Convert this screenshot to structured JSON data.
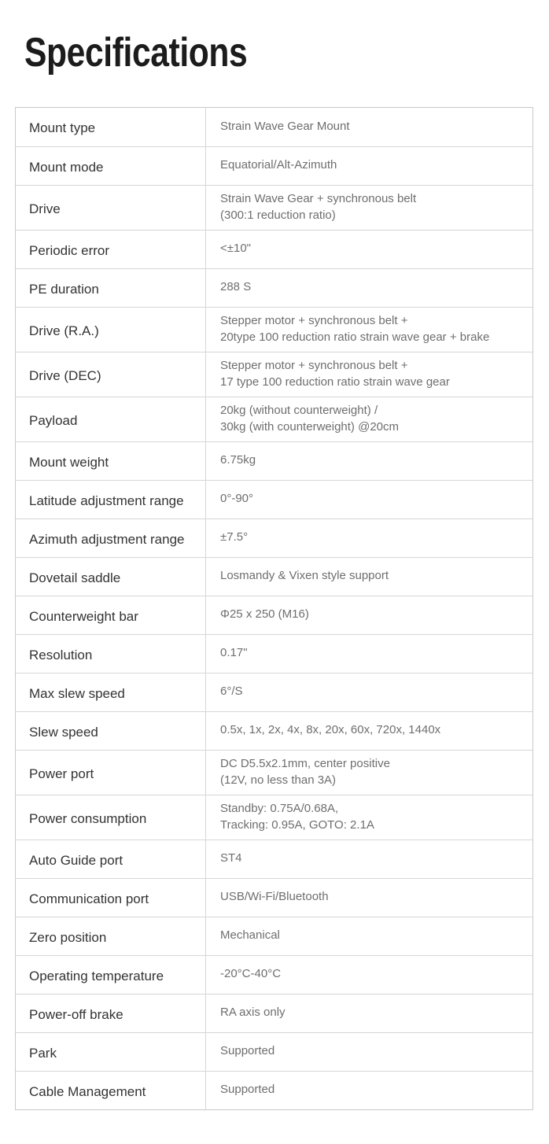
{
  "page": {
    "title": "Specifications"
  },
  "colors": {
    "background": "#ffffff",
    "title_text": "#1c1c1c",
    "label_text": "#333333",
    "value_text": "#6e6e6e",
    "border": "#d6d6d6"
  },
  "spec_table": {
    "rows": [
      {
        "label": "Mount type",
        "value": "Strain Wave Gear Mount"
      },
      {
        "label": "Mount mode",
        "value": "Equatorial/Alt-Azimuth"
      },
      {
        "label": "Drive",
        "value": "Strain Wave Gear + synchronous belt\n(300:1 reduction ratio)"
      },
      {
        "label": "Periodic error",
        "value": "<±10\""
      },
      {
        "label": "PE duration",
        "value": "288 S"
      },
      {
        "label": "Drive (R.A.)",
        "value": "Stepper motor + synchronous belt +\n20type 100 reduction ratio strain wave gear + brake"
      },
      {
        "label": "Drive (DEC)",
        "value": "Stepper motor + synchronous belt +\n17 type 100 reduction ratio strain wave gear"
      },
      {
        "label": "Payload",
        "value": "20kg (without counterweight) /\n30kg (with counterweight) @20cm"
      },
      {
        "label": "Mount weight",
        "value": "6.75kg"
      },
      {
        "label": "Latitude adjustment range",
        "value": "0°-90°"
      },
      {
        "label": "Azimuth adjustment range",
        "value": "±7.5°"
      },
      {
        "label": "Dovetail saddle",
        "value": "Losmandy & Vixen style support"
      },
      {
        "label": "Counterweight bar",
        "value": "Φ25 x 250 (M16)"
      },
      {
        "label": "Resolution",
        "value": "0.17\""
      },
      {
        "label": "Max slew speed",
        "value": "6°/S"
      },
      {
        "label": "Slew speed",
        "value": "0.5x, 1x, 2x, 4x, 8x, 20x, 60x, 720x, 1440x"
      },
      {
        "label": "Power port",
        "value": "DC D5.5x2.1mm, center positive\n(12V, no less than 3A)"
      },
      {
        "label": "Power consumption",
        "value": "Standby: 0.75A/0.68A,\nTracking: 0.95A, GOTO: 2.1A"
      },
      {
        "label": "Auto Guide port",
        "value": "ST4"
      },
      {
        "label": "Communication port",
        "value": "USB/Wi-Fi/Bluetooth"
      },
      {
        "label": "Zero position",
        "value": "Mechanical"
      },
      {
        "label": "Operating temperature",
        "value": "-20°C-40°C"
      },
      {
        "label": "Power-off brake",
        "value": "RA axis only"
      },
      {
        "label": "Park",
        "value": "Supported"
      },
      {
        "label": "Cable Management",
        "value": "Supported"
      }
    ]
  }
}
